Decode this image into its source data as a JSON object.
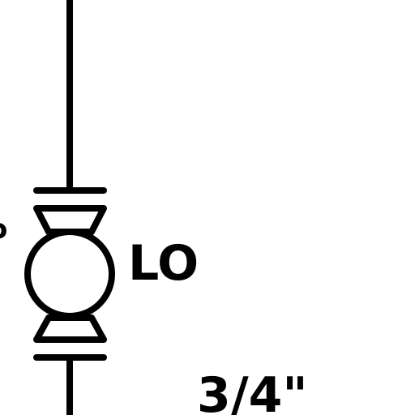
{
  "diagram": {
    "component_label": "LO",
    "pipe_size_label": "3/4\"",
    "partial_left_label": "ɔ",
    "symbol": "valve-with-circle-body-icon",
    "stroke_color": "#000000",
    "background_color": "#ffffff"
  }
}
